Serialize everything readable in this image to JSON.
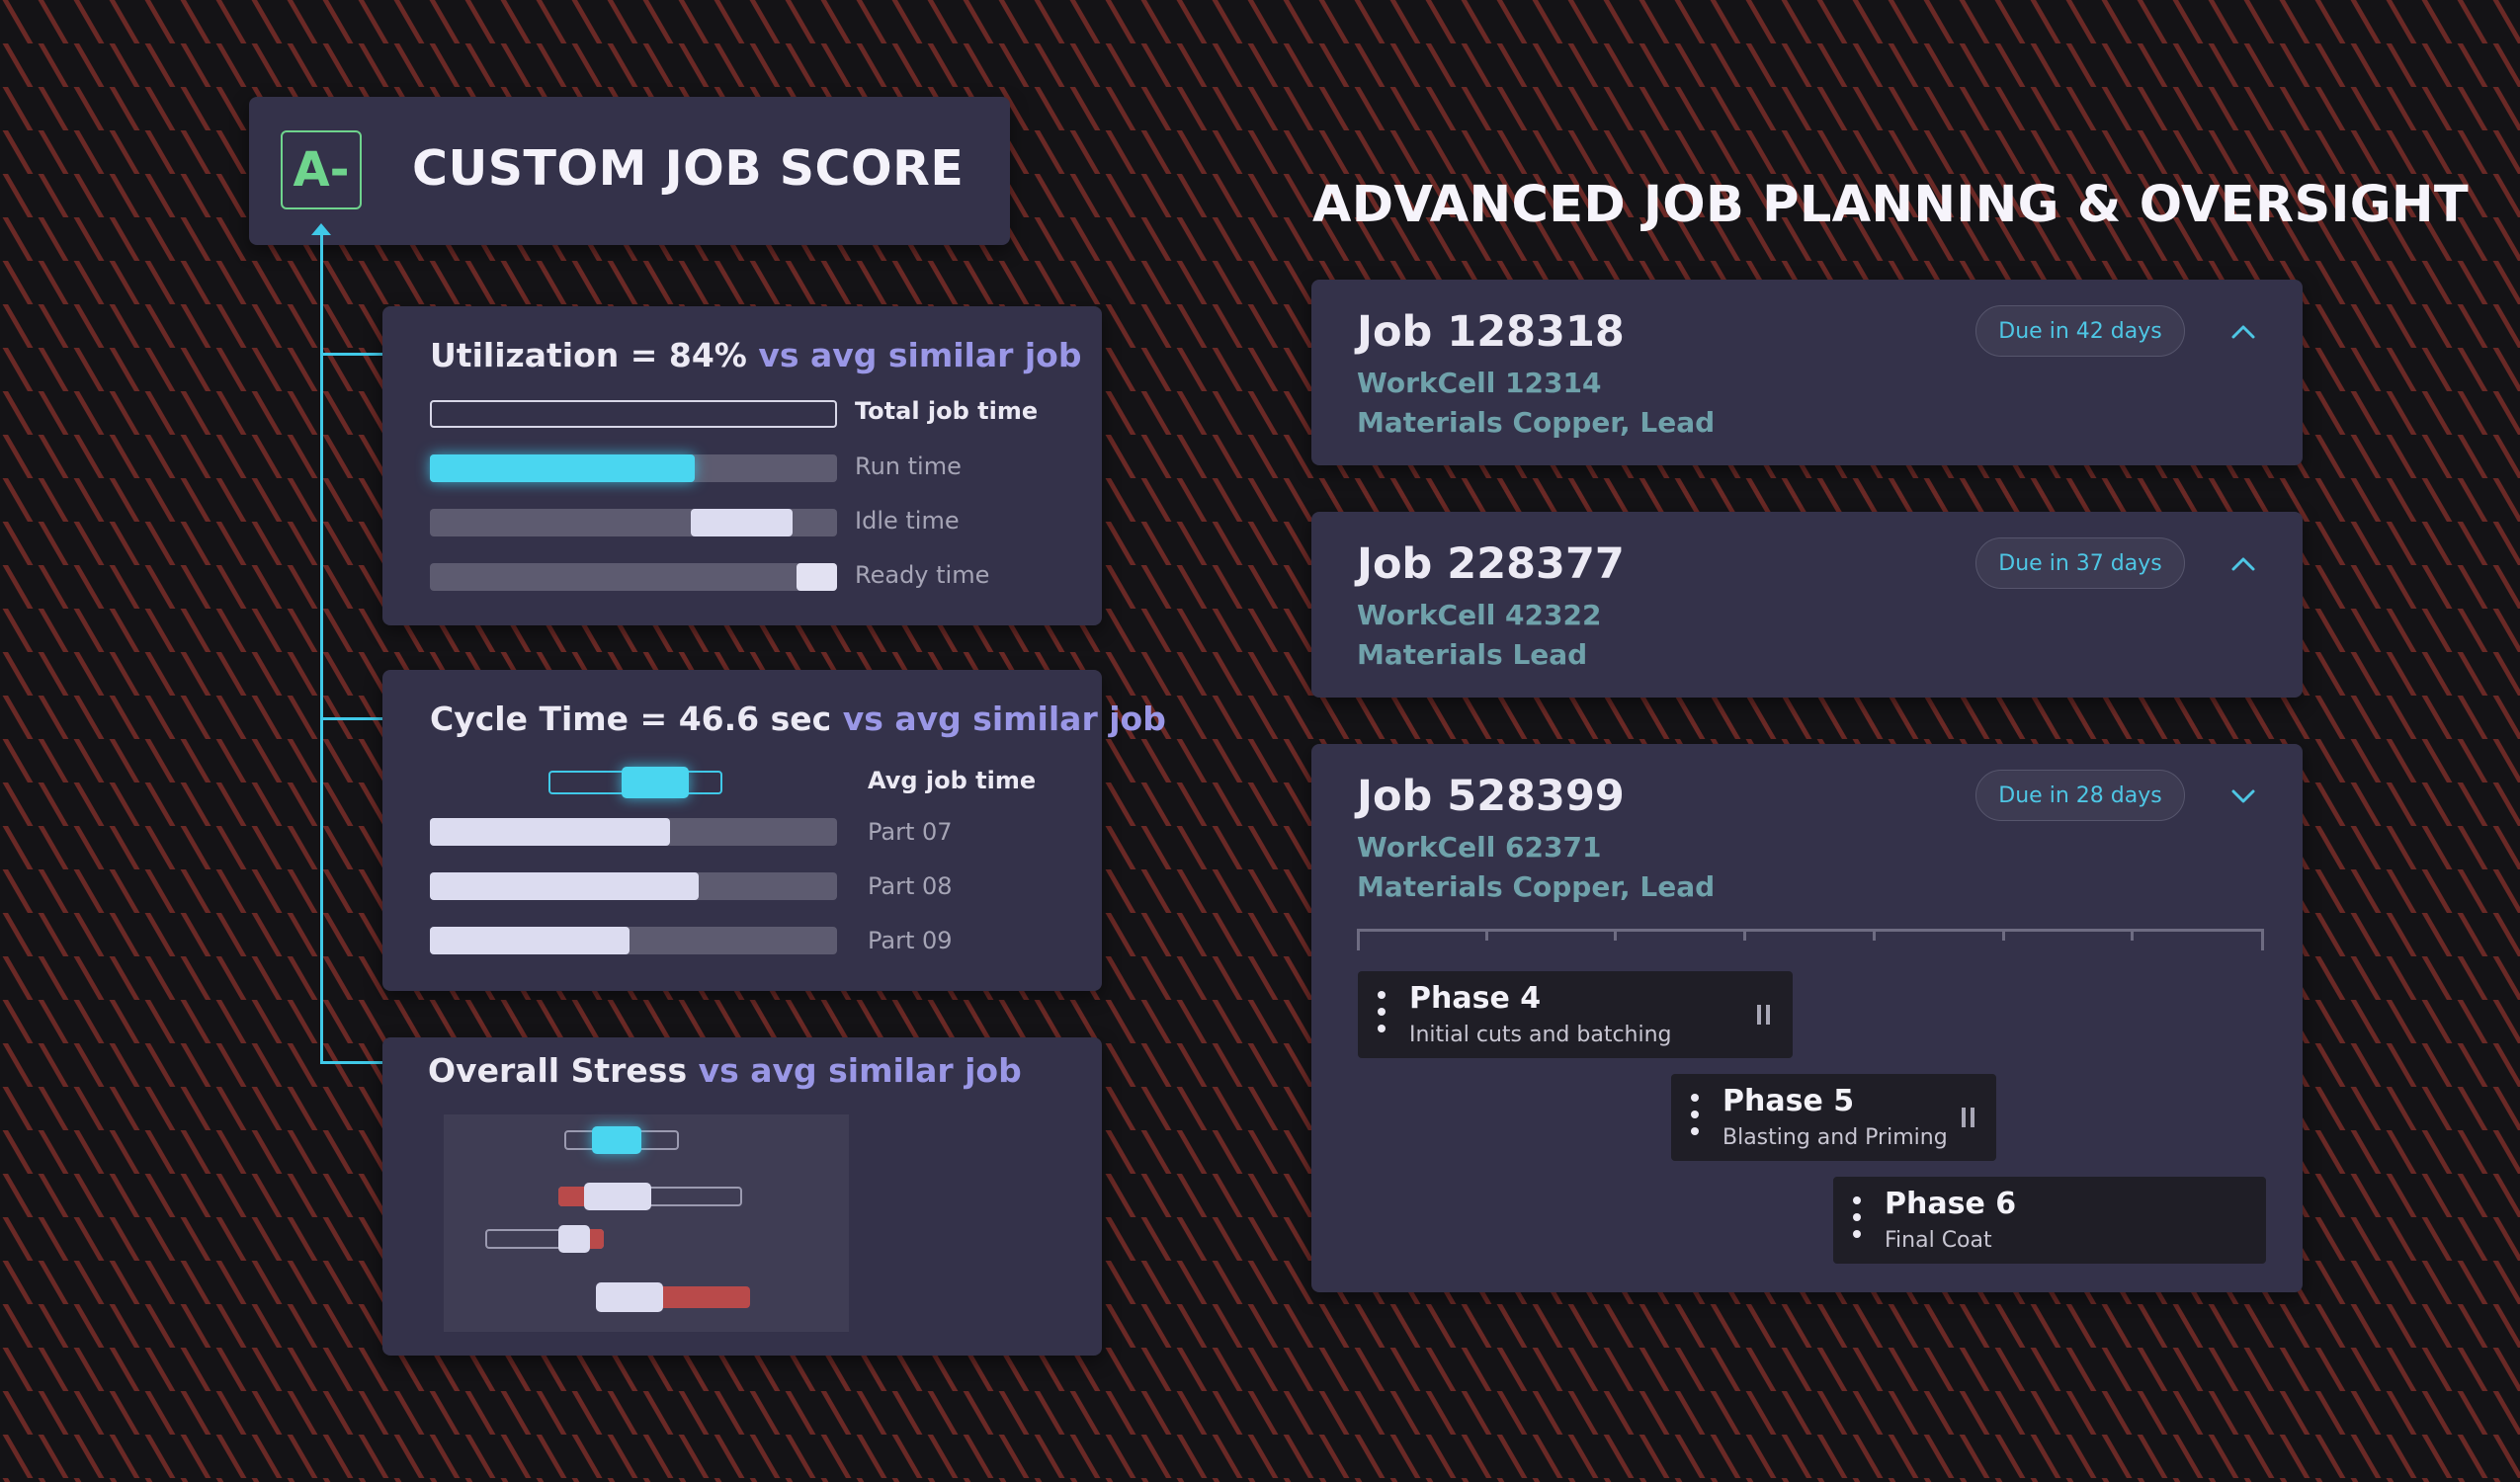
{
  "score": {
    "grade": "A-",
    "title": "CUSTOM JOB SCORE"
  },
  "utilization": {
    "prefix": "Utilization = 84% ",
    "vs": "vs avg similar job",
    "rows": [
      {
        "label": "Total job time"
      },
      {
        "label": "Run time",
        "fraction": 0.65
      },
      {
        "label": "Idle time",
        "fraction": 0.25
      },
      {
        "label": "Ready time",
        "fraction": 0.1
      }
    ]
  },
  "cycle": {
    "prefix": "Cycle Time = 46.6 sec ",
    "vs": "vs avg similar job",
    "avg_label": "Avg job time",
    "parts": [
      {
        "label": "Part 07",
        "fraction": 0.59
      },
      {
        "label": "Part 08",
        "fraction": 0.66
      },
      {
        "label": "Part 09",
        "fraction": 0.49
      }
    ]
  },
  "stress": {
    "prefix": "Overall Stress ",
    "vs": "vs avg similar job"
  },
  "planning": {
    "title": "ADVANCED JOB PLANNING & OVERSIGHT",
    "jobs": [
      {
        "title": "Job 128318",
        "workcell": "WorkCell 12314",
        "materials": "Materials Copper, Lead",
        "due": "Due in 42 days",
        "expanded": false
      },
      {
        "title": "Job 228377",
        "workcell": "WorkCell 42322",
        "materials": "Materials Lead",
        "due": "Due in 37 days",
        "expanded": false
      },
      {
        "title": "Job 528399",
        "workcell": "WorkCell 62371",
        "materials": "Materials Copper, Lead",
        "due": "Due in 28 days",
        "expanded": true
      }
    ],
    "phases": [
      {
        "name": "Phase 4",
        "desc": "Initial cuts and batching"
      },
      {
        "name": "Phase 5",
        "desc": "Blasting and Priming"
      },
      {
        "name": "Phase 6",
        "desc": "Final Coat"
      }
    ]
  },
  "colors": {
    "accent": "#40c9e8",
    "grade": "#6fd48d",
    "vs": "#9a97e6",
    "panel": "#34324a",
    "stress_red": "#b94a4a"
  }
}
